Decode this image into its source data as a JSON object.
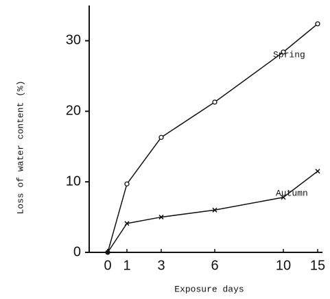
{
  "chart_data": {
    "type": "line",
    "x_label": "Exposure days",
    "y_label": "Loss of water content (%)",
    "categories": [
      "0",
      "1",
      "3",
      "6",
      "10",
      "15"
    ],
    "series": [
      {
        "name": "Spring",
        "color": "#111111",
        "marker": "circle",
        "values": [
          0,
          9.7,
          16.3,
          21.3,
          28.4,
          32.4
        ]
      },
      {
        "name": "Autumn",
        "color": "#111111",
        "marker": "x",
        "values": [
          0,
          4.1,
          5.0,
          6.0,
          7.8,
          11.5
        ]
      }
    ],
    "ylim": [
      0,
      35
    ],
    "yticks": [
      0,
      10,
      20,
      30
    ],
    "grid": false
  }
}
